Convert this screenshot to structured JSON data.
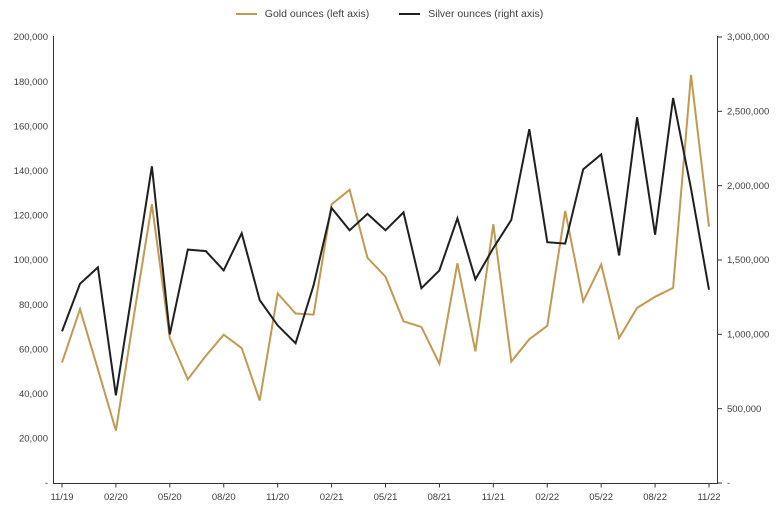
{
  "chart_data": {
    "type": "line",
    "title": "",
    "grid": false,
    "legend_position": "top-center",
    "x_months": [
      "11/19",
      "12/19",
      "01/20",
      "02/20",
      "03/20",
      "04/20",
      "05/20",
      "06/20",
      "07/20",
      "08/20",
      "09/20",
      "10/20",
      "11/20",
      "12/20",
      "01/21",
      "02/21",
      "03/21",
      "04/21",
      "05/21",
      "06/21",
      "07/21",
      "08/21",
      "09/21",
      "10/21",
      "11/21",
      "12/21",
      "01/22",
      "02/22",
      "03/22",
      "04/22",
      "05/22",
      "06/22",
      "07/22",
      "08/22",
      "09/22",
      "10/22",
      "11/22"
    ],
    "x_tick_labels": [
      "11/19",
      "02/20",
      "05/20",
      "08/20",
      "11/20",
      "02/21",
      "05/21",
      "08/21",
      "11/21",
      "02/22",
      "05/22",
      "08/22",
      "11/22"
    ],
    "left_axis": {
      "min": 0,
      "max": 200000,
      "step": 20000,
      "tick_labels": [
        "200,000",
        "180,000",
        "160,000",
        "140,000",
        "120,000",
        "100,000",
        "80,000",
        "60,000",
        "40,000",
        "20,000",
        "-"
      ]
    },
    "right_axis": {
      "min": 0,
      "max": 3000000,
      "step": 500000,
      "tick_labels": [
        "3,000,000",
        "2,500,000",
        "2,000,000",
        "1,500,000",
        "1,000,000",
        "500,000",
        "-"
      ]
    },
    "series": [
      {
        "name": "Gold ounces (left axis)",
        "axis": "left",
        "color_key": "gold",
        "values": [
          54000,
          78000,
          51000,
          23500,
          75000,
          125000,
          65000,
          46500,
          57000,
          66500,
          60500,
          37000,
          85000,
          76000,
          75500,
          125000,
          131500,
          101000,
          92500,
          72500,
          70000,
          53500,
          98500,
          59000,
          116000,
          54500,
          64500,
          70500,
          122000,
          81500,
          98000,
          65000,
          78500,
          83500,
          87500,
          183000,
          115000
        ]
      },
      {
        "name": "Silver ounces (right axis)",
        "axis": "right",
        "color_key": "silver",
        "values": [
          1020000,
          1340000,
          1450000,
          590000,
          1360000,
          2130000,
          1000000,
          1570000,
          1560000,
          1430000,
          1680000,
          1230000,
          1060000,
          940000,
          1330000,
          1850000,
          1700000,
          1810000,
          1700000,
          1820000,
          1310000,
          1430000,
          1780000,
          1370000,
          1580000,
          1770000,
          2380000,
          1620000,
          1610000,
          2110000,
          2210000,
          1530000,
          2460000,
          1670000,
          2590000,
          1980000,
          1300000
        ]
      }
    ]
  },
  "colors": {
    "gold": "#C19A52",
    "silver": "#1F1F1F",
    "axis": "#333333",
    "text": "#3d3d3d"
  }
}
